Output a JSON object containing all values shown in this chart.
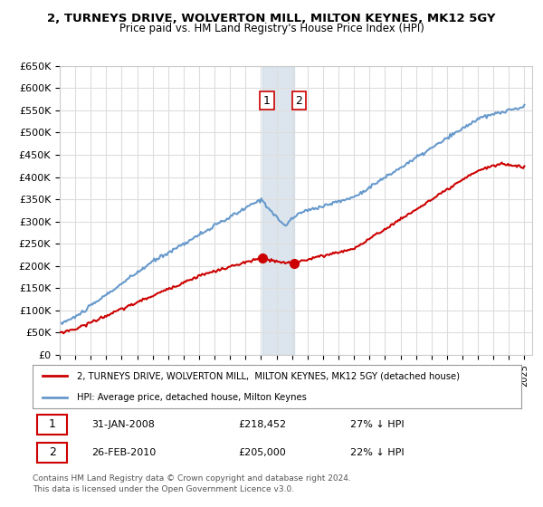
{
  "title": "2, TURNEYS DRIVE, WOLVERTON MILL, MILTON KEYNES, MK12 5GY",
  "subtitle": "Price paid vs. HM Land Registry's House Price Index (HPI)",
  "ylabel_ticks": [
    "£0",
    "£50K",
    "£100K",
    "£150K",
    "£200K",
    "£250K",
    "£300K",
    "£350K",
    "£400K",
    "£450K",
    "£500K",
    "£550K",
    "£600K",
    "£650K"
  ],
  "ytick_values": [
    0,
    50000,
    100000,
    150000,
    200000,
    250000,
    300000,
    350000,
    400000,
    450000,
    500000,
    550000,
    600000,
    650000
  ],
  "hpi_color": "#6699cc",
  "price_color": "#cc0000",
  "highlight_color": "#bbccdd",
  "sale1": {
    "date_num": 2008.08,
    "price": 218452,
    "label": "1"
  },
  "sale2": {
    "date_num": 2010.15,
    "price": 205000,
    "label": "2"
  },
  "legend_property": "2, TURNEYS DRIVE, WOLVERTON MILL,  MILTON KEYNES, MK12 5GY (detached house)",
  "legend_hpi": "HPI: Average price, detached house, Milton Keynes",
  "table_row1": "1    31-JAN-2008         £218,452         27% ↓ HPI",
  "table_row2": "2    26-FEB-2010         £205,000         22% ↓ HPI",
  "footnote": "Contains HM Land Registry data © Crown copyright and database right 2024.\nThis data is licensed under the Open Government Licence v3.0.",
  "bg_color": "#ffffff",
  "grid_color": "#dddddd",
  "xmin": 1995.0,
  "xmax": 2025.5,
  "ymin": 0,
  "ymax": 650000
}
